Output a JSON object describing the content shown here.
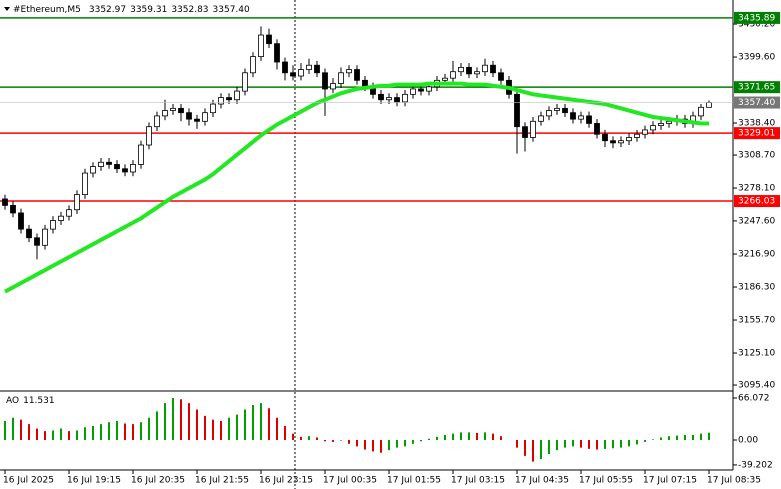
{
  "chart_data": {
    "type": "candlestick",
    "title": "#Ethereum,M5",
    "header_values": [
      "3352.97",
      "3359.31",
      "3352.83",
      "3357.40"
    ],
    "categories": [
      "16 Jul 2025",
      null,
      null,
      null,
      null,
      null,
      null,
      null,
      "16 Jul 19:15",
      null,
      null,
      null,
      null,
      null,
      null,
      null,
      "16 Jul 20:35",
      null,
      null,
      null,
      null,
      null,
      null,
      null,
      "16 Jul 21:55",
      null,
      null,
      null,
      null,
      null,
      null,
      null,
      "16 Jul 23:15",
      null,
      null,
      null,
      null,
      null,
      null,
      null,
      "17 Jul 00:35",
      null,
      null,
      null,
      null,
      null,
      null,
      null,
      "17 Jul 01:55",
      null,
      null,
      null,
      null,
      null,
      null,
      null,
      "17 Jul 03:15",
      null,
      null,
      null,
      null,
      null,
      null,
      null,
      "17 Jul 04:35",
      null,
      null,
      null,
      null,
      null,
      null,
      null,
      "17 Jul 05:55",
      null,
      null,
      null,
      null,
      null,
      null,
      null,
      "17 Jul 07:15",
      null,
      null,
      null,
      null,
      null,
      null,
      null,
      "17 Jul 08:35"
    ],
    "open": [
      3268,
      3262,
      3255,
      3240,
      3232,
      3225,
      3240,
      3248,
      3252,
      3258,
      3272,
      3292,
      3298,
      3302,
      3300,
      3296,
      3293,
      3300,
      3318,
      3335,
      3345,
      3350,
      3352,
      3348,
      3342,
      3340,
      3348,
      3356,
      3362,
      3360,
      3368,
      3385,
      3400,
      3420,
      3412,
      3395,
      3385,
      3382,
      3388,
      3392,
      3385,
      3370,
      3375,
      3385,
      3388,
      3378,
      3372,
      3365,
      3360,
      3362,
      3358,
      3365,
      3370,
      3368,
      3372,
      3378,
      3380,
      3386,
      3390,
      3384,
      3386,
      3392,
      3385,
      3378,
      3365,
      3335,
      3325,
      3340,
      3345,
      3350,
      3352,
      3348,
      3342,
      3345,
      3338,
      3328,
      3322,
      3320,
      3322,
      3325,
      3328,
      3332,
      3336,
      3338,
      3340,
      3342,
      3338,
      3345,
      3352.97
    ],
    "high": [
      3272,
      3266,
      3259,
      3244,
      3236,
      3244,
      3252,
      3256,
      3262,
      3276,
      3296,
      3302,
      3306,
      3306,
      3304,
      3300,
      3304,
      3322,
      3339,
      3349,
      3360,
      3356,
      3356,
      3352,
      3346,
      3352,
      3360,
      3366,
      3366,
      3372,
      3389,
      3404,
      3428,
      3426,
      3416,
      3399,
      3392,
      3394,
      3398,
      3396,
      3389,
      3380,
      3390,
      3392,
      3392,
      3382,
      3376,
      3369,
      3366,
      3366,
      3369,
      3374,
      3374,
      3376,
      3382,
      3384,
      3396,
      3394,
      3394,
      3390,
      3398,
      3396,
      3389,
      3382,
      3369,
      3339,
      3344,
      3349,
      3354,
      3356,
      3356,
      3352,
      3349,
      3349,
      3342,
      3332,
      3326,
      3326,
      3329,
      3332,
      3336,
      3340,
      3342,
      3344,
      3346,
      3346,
      3349,
      3356,
      3359.31
    ],
    "low": [
      3258,
      3251,
      3236,
      3228,
      3212,
      3221,
      3236,
      3244,
      3248,
      3254,
      3268,
      3288,
      3294,
      3296,
      3292,
      3289,
      3289,
      3296,
      3314,
      3331,
      3341,
      3346,
      3340,
      3336,
      3333,
      3336,
      3344,
      3352,
      3356,
      3356,
      3364,
      3381,
      3396,
      3408,
      3388,
      3378,
      3378,
      3378,
      3384,
      3381,
      3345,
      3366,
      3371,
      3381,
      3374,
      3368,
      3361,
      3356,
      3356,
      3354,
      3354,
      3361,
      3364,
      3364,
      3368,
      3374,
      3376,
      3382,
      3380,
      3380,
      3382,
      3381,
      3374,
      3361,
      3310,
      3312,
      3321,
      3336,
      3341,
      3346,
      3344,
      3338,
      3338,
      3334,
      3324,
      3316,
      3315,
      3316,
      3318,
      3321,
      3324,
      3328,
      3332,
      3334,
      3336,
      3334,
      3334,
      3341,
      3352.83
    ],
    "close": [
      3262,
      3255,
      3240,
      3232,
      3225,
      3240,
      3248,
      3252,
      3258,
      3272,
      3292,
      3298,
      3302,
      3300,
      3296,
      3293,
      3300,
      3318,
      3335,
      3345,
      3350,
      3352,
      3348,
      3342,
      3340,
      3348,
      3356,
      3362,
      3360,
      3368,
      3385,
      3400,
      3420,
      3412,
      3395,
      3385,
      3382,
      3388,
      3392,
      3385,
      3370,
      3375,
      3385,
      3388,
      3378,
      3372,
      3365,
      3360,
      3362,
      3358,
      3365,
      3370,
      3368,
      3372,
      3378,
      3380,
      3386,
      3390,
      3384,
      3386,
      3392,
      3385,
      3378,
      3365,
      3335,
      3325,
      3340,
      3345,
      3350,
      3352,
      3348,
      3342,
      3345,
      3338,
      3328,
      3322,
      3320,
      3322,
      3325,
      3328,
      3332,
      3336,
      3338,
      3340,
      3342,
      3338,
      3345,
      3352.97,
      3357.4
    ],
    "ma": {
      "color": "#22e822",
      "values": [
        3182,
        3186,
        3190,
        3194,
        3198,
        3202,
        3206,
        3210,
        3214,
        3218,
        3222,
        3226,
        3230,
        3234,
        3238,
        3242,
        3246,
        3250,
        3255,
        3260,
        3265,
        3270,
        3274,
        3278,
        3282,
        3286,
        3291,
        3297,
        3303,
        3309,
        3315,
        3321,
        3327,
        3332,
        3337,
        3341,
        3345,
        3349,
        3353,
        3357,
        3360,
        3363,
        3366,
        3368,
        3370,
        3371,
        3372,
        3373,
        3373,
        3374,
        3374,
        3374,
        3374,
        3375,
        3375,
        3375,
        3375,
        3375,
        3374,
        3374,
        3374,
        3373,
        3372,
        3371,
        3369,
        3367,
        3365,
        3364,
        3363,
        3362,
        3361,
        3360,
        3359,
        3358,
        3357,
        3356,
        3354,
        3352,
        3350,
        3348,
        3346,
        3344,
        3343,
        3342,
        3341,
        3340,
        3339,
        3338,
        3338
      ]
    },
    "levels": [
      {
        "value": 3435.89,
        "color": "#008000"
      },
      {
        "value": 3371.65,
        "color": "#008000"
      },
      {
        "value": 3329.01,
        "color": "#ff0000"
      },
      {
        "value": 3266.03,
        "color": "#ff0000"
      }
    ],
    "ylim": [
      3090.8,
      3452.5
    ],
    "yticks": [
      {
        "value": 3430.2,
        "label": "3430.20"
      },
      {
        "value": 3399.6,
        "label": "3399.60"
      },
      {
        "value": 3338.4,
        "label": "3338.40"
      },
      {
        "value": 3308.7,
        "label": "3308.70"
      },
      {
        "value": 3278.1,
        "label": "3278.10"
      },
      {
        "value": 3247.6,
        "label": "3247.60"
      },
      {
        "value": 3216.9,
        "label": "3216.90"
      },
      {
        "value": 3186.3,
        "label": "3186.30"
      },
      {
        "value": 3155.7,
        "label": "3155.70"
      },
      {
        "value": 3125.1,
        "label": "3125.10"
      },
      {
        "value": 3095.4,
        "label": "3095.40"
      }
    ],
    "ao": {
      "name": "AO",
      "up_color": "#00a000",
      "down_color": "#e00000",
      "ylim": [
        -47.2,
        75.5
      ],
      "yticks": [
        66.072,
        {
          "value": 0,
          "label": "0.00"
        },
        -39.202
      ],
      "values": [
        30,
        35,
        32,
        25,
        18,
        14,
        15,
        18,
        14,
        15,
        20,
        22,
        25,
        28,
        30,
        26,
        25,
        28,
        35,
        45,
        58,
        66,
        64,
        58,
        48,
        38,
        32,
        30,
        35,
        40,
        48,
        55,
        58,
        50,
        35,
        22,
        10,
        5,
        6,
        4,
        -2,
        -3,
        -1,
        -6,
        -10,
        -15,
        -18,
        -20,
        -16,
        -12,
        -10,
        -6,
        -2,
        2,
        5,
        8,
        10,
        12,
        12,
        11,
        12,
        10,
        6,
        0,
        -12,
        -25,
        -34,
        -30,
        -22,
        -16,
        -12,
        -10,
        -12,
        -14,
        -15,
        -14,
        -13,
        -12,
        -10,
        -7,
        -3,
        1,
        4,
        6,
        7,
        8,
        8,
        10,
        11.531
      ]
    }
  }
}
